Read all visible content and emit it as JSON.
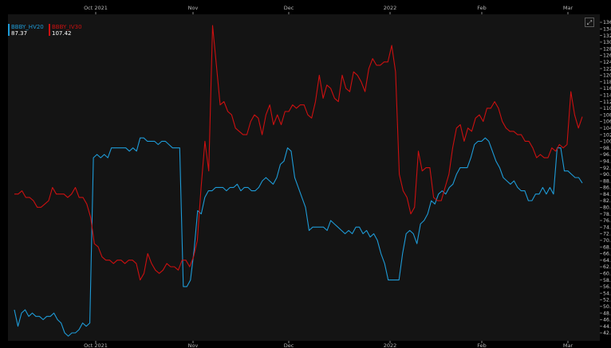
{
  "chart_data": {
    "type": "line",
    "x_ticks": [
      "Oct 2021",
      "Nov",
      "Dec",
      "2022",
      "Feb",
      "Mar"
    ],
    "ylim": [
      42.0,
      136.0
    ],
    "y_ticks": [
      "42.0",
      "44.0",
      "46.0",
      "48.0",
      "50.0",
      "52.0",
      "54.0",
      "56.0",
      "58.0",
      "60.0",
      "62.0",
      "64.0",
      "66.0",
      "68.0",
      "70.0",
      "72.0",
      "74.0",
      "76.0",
      "78.0",
      "80.0",
      "82.0",
      "84.0",
      "86.0",
      "88.0",
      "90.0",
      "92.0",
      "94.0",
      "96.0",
      "98.0",
      "100.0",
      "102.0",
      "104.0",
      "106.0",
      "108.0",
      "110.0",
      "112.0",
      "114.0",
      "116.0",
      "118.0",
      "120.0",
      "122.0",
      "124.0",
      "126.0",
      "128.0",
      "130.0",
      "132.0",
      "134.0",
      "136."
    ],
    "grid": false,
    "legend_position": "top-left",
    "series": [
      {
        "name": "BBBY_HV20",
        "color": "#1e9bd7",
        "last_value": "87.37",
        "values": [
          49,
          44,
          48,
          49,
          47,
          48,
          47,
          47,
          46,
          47,
          47,
          48,
          46,
          45,
          42,
          41,
          42,
          42,
          43,
          45,
          44,
          45,
          95,
          96,
          95,
          96,
          95,
          98,
          98,
          98,
          98,
          98,
          97,
          98,
          97,
          101,
          101,
          100,
          100,
          100,
          99,
          100,
          100,
          99,
          98,
          98,
          98,
          56,
          56,
          58,
          67,
          79,
          78,
          83,
          85,
          85,
          86,
          86,
          86,
          85,
          86,
          86,
          87,
          85,
          86,
          86,
          85,
          85,
          86,
          88,
          89,
          88,
          87,
          89,
          93,
          94,
          98,
          97,
          89,
          86,
          83,
          80,
          73,
          74,
          74,
          74,
          74,
          73,
          76,
          75,
          74,
          73,
          72,
          73,
          72,
          74,
          74,
          72,
          73,
          71,
          72,
          70,
          66,
          63,
          58,
          58,
          58,
          58,
          66,
          72,
          73,
          72,
          69,
          75,
          76,
          78,
          82,
          81,
          84,
          85,
          84,
          86,
          87,
          90,
          92,
          92,
          92,
          95,
          99,
          100,
          100,
          101,
          100,
          97,
          94,
          92,
          89,
          88,
          87,
          88,
          86,
          85,
          85,
          82,
          82,
          84,
          84,
          86,
          84,
          86,
          84,
          98,
          98,
          91,
          91,
          90,
          89,
          89,
          87.37
        ]
      },
      {
        "name": "BBBY_IV30",
        "color": "#cc1010",
        "last_value": "107.42",
        "values": [
          84,
          84,
          85,
          83,
          83,
          82,
          80,
          80,
          81,
          82,
          86,
          84,
          84,
          84,
          83,
          84,
          86,
          83,
          83,
          81,
          77,
          69,
          68,
          65,
          64,
          64,
          63,
          64,
          64,
          63,
          64,
          64,
          63,
          58,
          60,
          66,
          63,
          61,
          60,
          61,
          63,
          62,
          62,
          61,
          64,
          64,
          62,
          65,
          70,
          86,
          100,
          91,
          135,
          123,
          111,
          112,
          109,
          108,
          104,
          103,
          102,
          102,
          106,
          108,
          107,
          102,
          108,
          111,
          105,
          108,
          105,
          109,
          109,
          111,
          110,
          111,
          111,
          108,
          107,
          112,
          120,
          113,
          117,
          116,
          113,
          112,
          120,
          116,
          115,
          121,
          120,
          118,
          115,
          122,
          125,
          123,
          123,
          124,
          124,
          129,
          121,
          90,
          85,
          83,
          78,
          80,
          97,
          91,
          92,
          92,
          83,
          82,
          82,
          86,
          90,
          98,
          104,
          105,
          100,
          104,
          103,
          107,
          108,
          106,
          110,
          110,
          112,
          110,
          106,
          104,
          103,
          103,
          102,
          102,
          100,
          100,
          98,
          95,
          96,
          95,
          95,
          98,
          97,
          99,
          98,
          99,
          115,
          108,
          104,
          107.42
        ]
      }
    ]
  }
}
